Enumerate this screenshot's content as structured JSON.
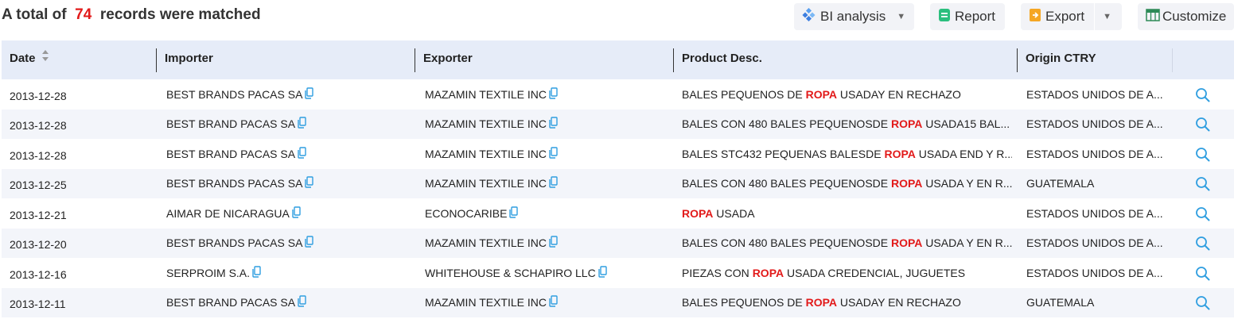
{
  "summary": {
    "prefix": "A total of  ",
    "count": "74",
    "suffix": "  records were matched"
  },
  "toolbar": {
    "bi_label": "BI analysis",
    "report_label": "Report",
    "export_label": "Export",
    "customize_label": "Customize",
    "bi_icon": "bi-diamond-icon",
    "report_icon": "report-icon",
    "export_icon": "export-icon",
    "customize_icon": "customize-grid-icon"
  },
  "columns": {
    "date": "Date",
    "importer": "Importer",
    "exporter": "Exporter",
    "product": "Product Desc.",
    "origin": "Origin CTRY"
  },
  "colors": {
    "accent": "#1e9fd8",
    "highlight": "#e21a1a",
    "header_bg": "#e6ecf8",
    "row_alt_bg": "#f3f5fa"
  },
  "keyword": "ROPA",
  "rows": [
    {
      "date": "2013-12-28",
      "importer": "BEST BRANDS PACAS SA",
      "exporter": "MAZAMIN TEXTILE INC",
      "desc_before": "BALES PEQUENOS DE ",
      "desc_keyword": "ROPA",
      "desc_after": " USADAY EN RECHAZO",
      "origin": "ESTADOS UNIDOS DE A..."
    },
    {
      "date": "2013-12-28",
      "importer": "BEST BRAND PACAS SA",
      "exporter": "MAZAMIN TEXTILE INC",
      "desc_before": "BALES CON 480 BALES PEQUENOSDE ",
      "desc_keyword": "ROPA",
      "desc_after": " USADA15 BAL...",
      "origin": "ESTADOS UNIDOS DE A..."
    },
    {
      "date": "2013-12-28",
      "importer": "BEST BRAND PACAS SA",
      "exporter": "MAZAMIN TEXTILE INC",
      "desc_before": "BALES STC432 PEQUENAS BALESDE ",
      "desc_keyword": "ROPA",
      "desc_after": " USADA END Y R...",
      "origin": "ESTADOS UNIDOS DE A..."
    },
    {
      "date": "2013-12-25",
      "importer": "BEST BRANDS PACAS SA",
      "exporter": "MAZAMIN TEXTILE INC",
      "desc_before": "BALES CON 480 BALES PEQUENOSDE ",
      "desc_keyword": "ROPA",
      "desc_after": " USADA Y EN R...",
      "origin": "GUATEMALA"
    },
    {
      "date": "2013-12-21",
      "importer": "AIMAR DE NICARAGUA",
      "exporter": "ECONOCARIBE",
      "desc_before": "",
      "desc_keyword": "ROPA",
      "desc_after": " USADA",
      "origin": "ESTADOS UNIDOS DE A..."
    },
    {
      "date": "2013-12-20",
      "importer": "BEST BRANDS PACAS SA",
      "exporter": "MAZAMIN TEXTILE INC",
      "desc_before": "BALES CON 480 BALES PEQUENOSDE ",
      "desc_keyword": "ROPA",
      "desc_after": " USADA Y EN R...",
      "origin": "ESTADOS UNIDOS DE A..."
    },
    {
      "date": "2013-12-16",
      "importer": "SERPROIM S.A.",
      "exporter": "WHITEHOUSE & SCHAPIRO LLC",
      "desc_before": "PIEZAS CON ",
      "desc_keyword": "ROPA",
      "desc_after": " USADA CREDENCIAL, JUGUETES",
      "origin": "ESTADOS UNIDOS DE A..."
    },
    {
      "date": "2013-12-11",
      "importer": "BEST BRAND PACAS SA",
      "exporter": "MAZAMIN TEXTILE INC",
      "desc_before": "BALES PEQUENOS DE ",
      "desc_keyword": "ROPA",
      "desc_after": " USADAY EN RECHAZO",
      "origin": "GUATEMALA"
    }
  ]
}
